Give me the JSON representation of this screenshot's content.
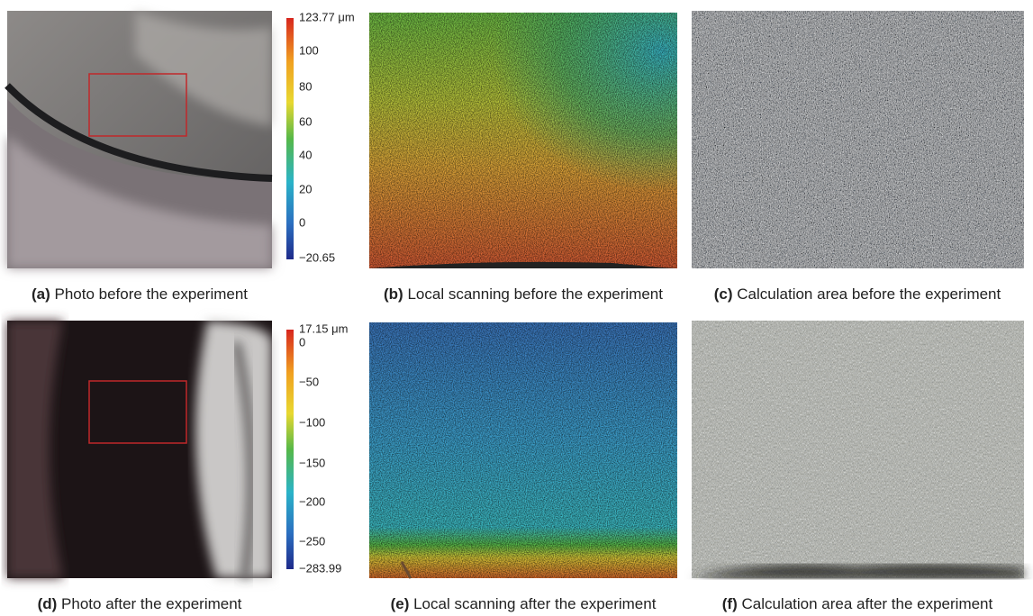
{
  "panels": [
    {
      "label": "(a)",
      "caption": "Photo before the experiment"
    },
    {
      "label": "(b)",
      "caption": "Local scanning before the experiment"
    },
    {
      "label": "(c)",
      "caption": "Calculation area before the experiment"
    },
    {
      "label": "(d)",
      "caption": "Photo after the experiment"
    },
    {
      "label": "(e)",
      "caption": "Local scanning after the experiment"
    },
    {
      "label": "(f)",
      "caption": "Calculation area after the experiment"
    }
  ],
  "colorbars": [
    {
      "labels": [
        "123.77 μm",
        "100",
        "80",
        "60",
        "40",
        "20",
        "0",
        "−20.65"
      ]
    },
    {
      "labels": [
        "17.15 μm",
        "0",
        "−50",
        "−100",
        "−150",
        "−200",
        "−250",
        "−283.99"
      ]
    }
  ]
}
